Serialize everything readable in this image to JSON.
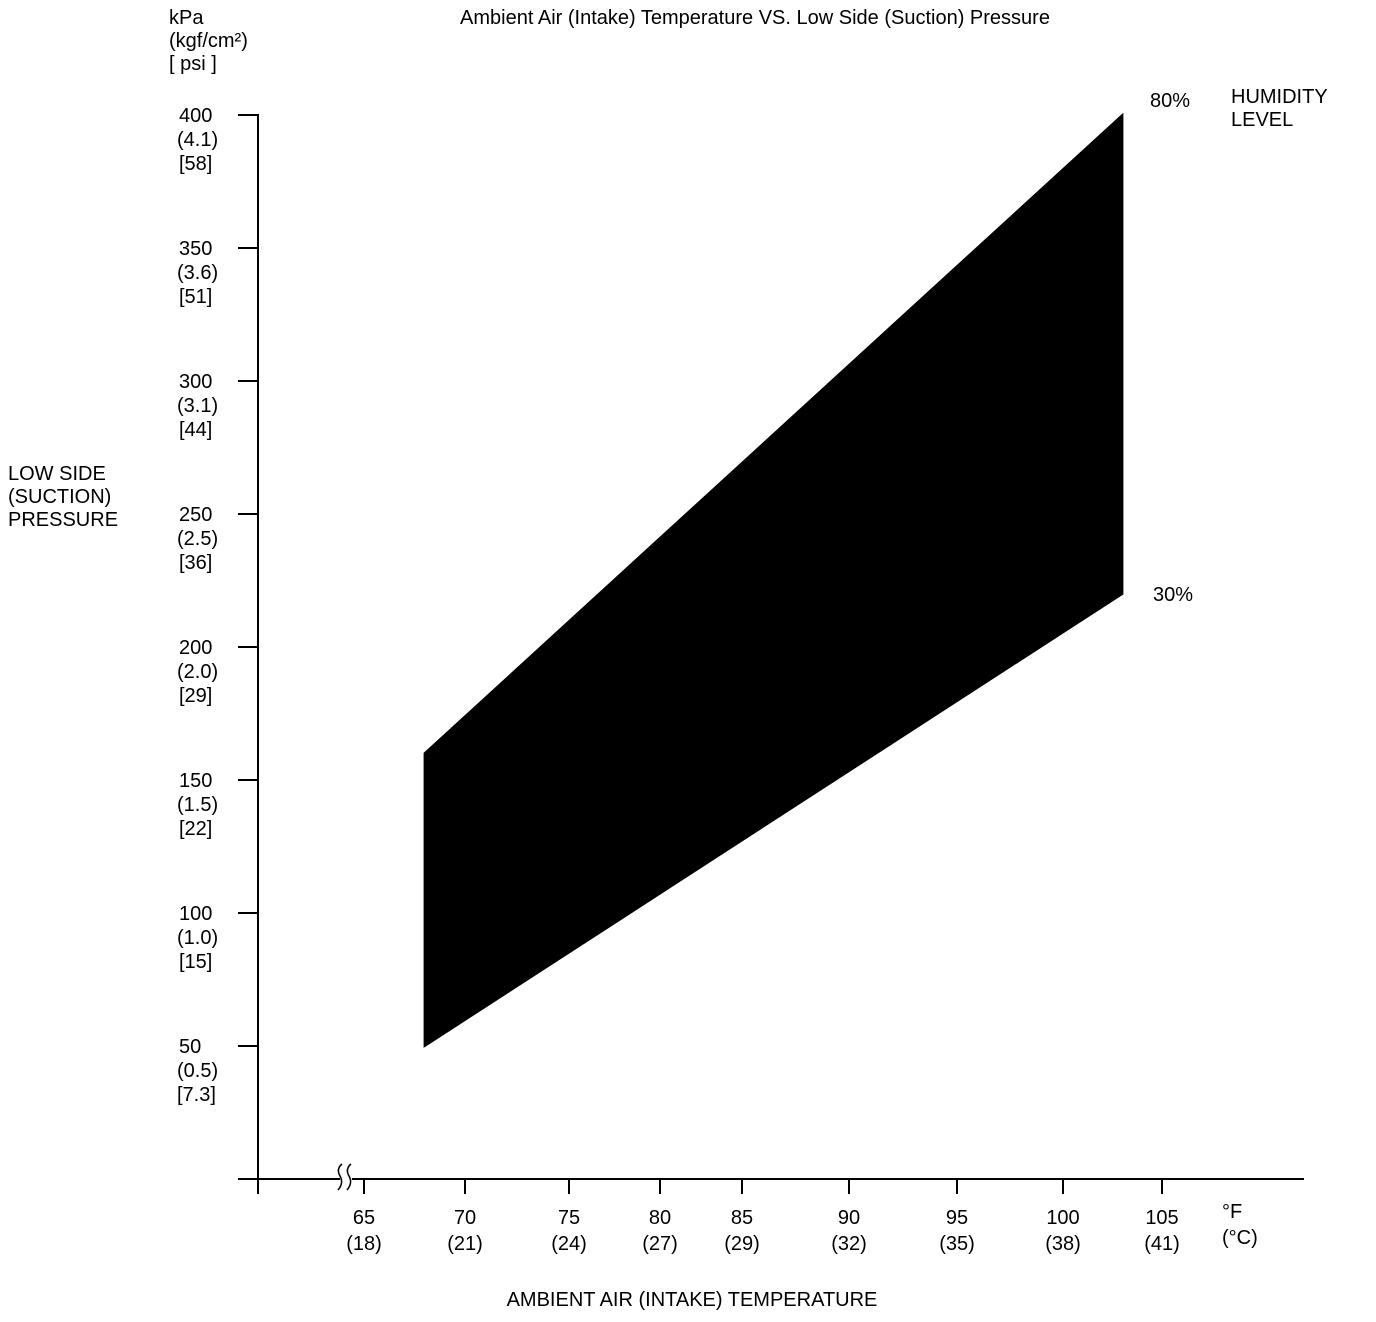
{
  "chart_data": {
    "type": "area",
    "title": "Ambient Air (Intake) Temperature VS. Low Side (Suction) Pressure",
    "xlabel": "AMBIENT AIR (INTAKE) TEMPERATURE",
    "ylabel_lines": [
      "LOW SIDE",
      "(SUCTION)",
      "PRESSURE"
    ],
    "y_unit_lines": [
      "kPa",
      "(kgf/cm²)",
      "[ psi ]"
    ],
    "x_unit_lines": [
      "°F",
      "(°C)"
    ],
    "legend_title_lines": [
      "HUMIDITY",
      "LEVEL"
    ],
    "grid": false,
    "ylim": [
      0,
      400
    ],
    "x_axis_break": true,
    "y_ticks": [
      {
        "value": 50,
        "labels": [
          "50",
          "(0.5)",
          "[7.3]"
        ]
      },
      {
        "value": 100,
        "labels": [
          "100",
          "(1.0)",
          "[15]"
        ]
      },
      {
        "value": 150,
        "labels": [
          "150",
          "(1.5)",
          "[22]"
        ]
      },
      {
        "value": 200,
        "labels": [
          "200",
          "(2.0)",
          "[29]"
        ]
      },
      {
        "value": 250,
        "labels": [
          "250",
          "(2.5)",
          "[36]"
        ]
      },
      {
        "value": 300,
        "labels": [
          "300",
          "(3.1)",
          "[44]"
        ]
      },
      {
        "value": 350,
        "labels": [
          "350",
          "(3.6)",
          "[51]"
        ]
      },
      {
        "value": 400,
        "labels": [
          "400",
          "(4.1)",
          "[58]"
        ]
      }
    ],
    "x_ticks": [
      {
        "value": 65,
        "labels": [
          "65",
          "(18)"
        ]
      },
      {
        "value": 70,
        "labels": [
          "70",
          "(21)"
        ]
      },
      {
        "value": 75,
        "labels": [
          "75",
          "(24)"
        ]
      },
      {
        "value": 80,
        "labels": [
          "80",
          "(27)"
        ]
      },
      {
        "value": 85,
        "labels": [
          "85",
          "(29)"
        ]
      },
      {
        "value": 90,
        "labels": [
          "90",
          "(32)"
        ]
      },
      {
        "value": 95,
        "labels": [
          "95",
          "(35)"
        ]
      },
      {
        "value": 100,
        "labels": [
          "100",
          "(38)"
        ]
      },
      {
        "value": 105,
        "labels": [
          "105",
          "(41)"
        ]
      }
    ],
    "series": [
      {
        "name": "80%",
        "x": [
          68,
          103
        ],
        "y": [
          160,
          400
        ]
      },
      {
        "name": "30%",
        "x": [
          68,
          103
        ],
        "y": [
          50,
          220
        ]
      }
    ],
    "fill_color": "#000000"
  }
}
